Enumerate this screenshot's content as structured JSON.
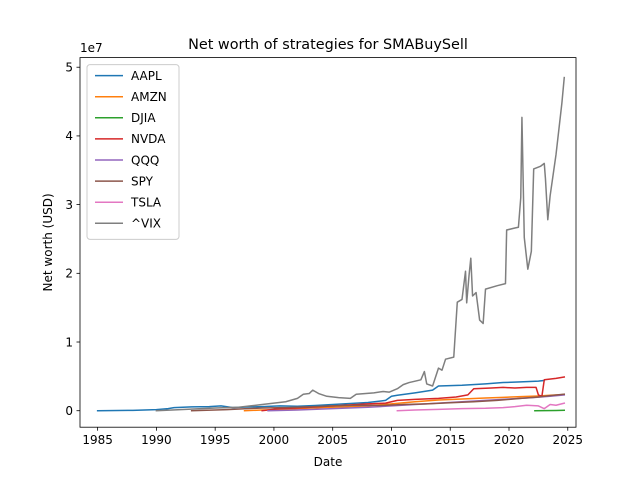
{
  "chart_data": {
    "type": "line",
    "title": "Net worth of strategies for SMABuySell",
    "xlabel": "Date",
    "ylabel": "Net worth (USD)",
    "y_offset_text": "1e7",
    "xlim": [
      1983.5,
      2025.7
    ],
    "ylim": [
      -2400000,
      51400000
    ],
    "x_ticks": [
      1985,
      1990,
      1995,
      2000,
      2005,
      2010,
      2015,
      2020,
      2025
    ],
    "x_tick_labels": [
      "1985",
      "1990",
      "1995",
      "2000",
      "2005",
      "2010",
      "2015",
      "2020",
      "2025"
    ],
    "y_ticks": [
      0,
      10000000,
      20000000,
      30000000,
      40000000,
      50000000
    ],
    "y_tick_labels": [
      "0",
      "1",
      "2",
      "3",
      "4",
      "5"
    ],
    "grid": false,
    "legend_position": "top-left",
    "series": [
      {
        "name": "AAPL",
        "color": "#1f77b4",
        "points": [
          [
            1985.0,
            0
          ],
          [
            1988.0,
            50000
          ],
          [
            1990.0,
            150000
          ],
          [
            1991.0,
            300000
          ],
          [
            1991.5,
            450000
          ],
          [
            1993.0,
            550000
          ],
          [
            1994.5,
            600000
          ],
          [
            1995.5,
            700000
          ],
          [
            1996.5,
            450000
          ],
          [
            1998.0,
            550000
          ],
          [
            1999.0,
            600000
          ],
          [
            2000.5,
            700000
          ],
          [
            2002.0,
            650000
          ],
          [
            2003.5,
            750000
          ],
          [
            2005.0,
            900000
          ],
          [
            2006.5,
            1050000
          ],
          [
            2008.0,
            1200000
          ],
          [
            2009.5,
            1500000
          ],
          [
            2010.0,
            2100000
          ],
          [
            2010.5,
            2250000
          ],
          [
            2012.0,
            2600000
          ],
          [
            2013.5,
            3000000
          ],
          [
            2014.0,
            3600000
          ],
          [
            2016.0,
            3700000
          ],
          [
            2018.0,
            3900000
          ],
          [
            2019.5,
            4100000
          ],
          [
            2021.0,
            4200000
          ],
          [
            2022.5,
            4300000
          ],
          [
            2023.0,
            4400000
          ]
        ]
      },
      {
        "name": "AMZN",
        "color": "#ff7f0e",
        "points": [
          [
            1997.5,
            0
          ],
          [
            1999.0,
            100000
          ],
          [
            2000.5,
            150000
          ],
          [
            2002.0,
            300000
          ],
          [
            2004.0,
            450000
          ],
          [
            2006.0,
            550000
          ],
          [
            2008.0,
            700000
          ],
          [
            2010.0,
            1000000
          ],
          [
            2012.0,
            1300000
          ],
          [
            2014.0,
            1550000
          ],
          [
            2016.0,
            1700000
          ],
          [
            2018.0,
            1850000
          ],
          [
            2019.5,
            1950000
          ],
          [
            2021.0,
            2050000
          ],
          [
            2022.5,
            2150000
          ],
          [
            2023.5,
            2250000
          ],
          [
            2024.7,
            2350000
          ]
        ]
      },
      {
        "name": "DJIA",
        "color": "#2ca02c",
        "points": [
          [
            2022.2,
            0
          ],
          [
            2023.0,
            20000
          ],
          [
            2024.0,
            40000
          ],
          [
            2024.7,
            60000
          ]
        ]
      },
      {
        "name": "NVDA",
        "color": "#d62728",
        "points": [
          [
            1999.0,
            0
          ],
          [
            2000.5,
            300000
          ],
          [
            2002.0,
            400000
          ],
          [
            2004.0,
            600000
          ],
          [
            2006.0,
            800000
          ],
          [
            2008.0,
            1000000
          ],
          [
            2009.5,
            1100000
          ],
          [
            2010.5,
            1500000
          ],
          [
            2012.0,
            1650000
          ],
          [
            2014.0,
            1800000
          ],
          [
            2015.5,
            2000000
          ],
          [
            2016.5,
            2300000
          ],
          [
            2017.0,
            3200000
          ],
          [
            2018.5,
            3300000
          ],
          [
            2019.5,
            3400000
          ],
          [
            2020.5,
            3300000
          ],
          [
            2021.5,
            3400000
          ],
          [
            2022.3,
            3400000
          ],
          [
            2022.5,
            2300000
          ],
          [
            2022.8,
            2100000
          ],
          [
            2023.0,
            4500000
          ],
          [
            2024.0,
            4700000
          ],
          [
            2024.7,
            4900000
          ]
        ]
      },
      {
        "name": "QQQ",
        "color": "#9467bd",
        "points": [
          [
            1999.5,
            0
          ],
          [
            2002.0,
            100000
          ],
          [
            2005.0,
            300000
          ],
          [
            2008.0,
            500000
          ],
          [
            2010.0,
            700000
          ],
          [
            2012.0,
            900000
          ],
          [
            2014.0,
            1100000
          ],
          [
            2016.0,
            1300000
          ],
          [
            2018.0,
            1500000
          ],
          [
            2020.0,
            1700000
          ],
          [
            2022.0,
            1900000
          ],
          [
            2023.5,
            2100000
          ],
          [
            2024.7,
            2300000
          ]
        ]
      },
      {
        "name": "SPY",
        "color": "#8c564b",
        "points": [
          [
            1993.0,
            0
          ],
          [
            1996.0,
            150000
          ],
          [
            1999.0,
            400000
          ],
          [
            2001.0,
            450000
          ],
          [
            2003.0,
            550000
          ],
          [
            2005.0,
            700000
          ],
          [
            2007.0,
            800000
          ],
          [
            2009.0,
            750000
          ],
          [
            2011.0,
            900000
          ],
          [
            2013.0,
            1000000
          ],
          [
            2015.0,
            1150000
          ],
          [
            2017.0,
            1300000
          ],
          [
            2019.0,
            1500000
          ],
          [
            2021.0,
            1800000
          ],
          [
            2022.5,
            2000000
          ],
          [
            2023.5,
            2200000
          ],
          [
            2024.7,
            2400000
          ]
        ]
      },
      {
        "name": "TSLA",
        "color": "#e377c2",
        "points": [
          [
            2010.5,
            0
          ],
          [
            2012.0,
            100000
          ],
          [
            2014.0,
            200000
          ],
          [
            2016.0,
            300000
          ],
          [
            2018.0,
            350000
          ],
          [
            2019.5,
            450000
          ],
          [
            2020.5,
            600000
          ],
          [
            2021.5,
            800000
          ],
          [
            2022.5,
            700000
          ],
          [
            2023.0,
            300000
          ],
          [
            2023.5,
            900000
          ],
          [
            2024.0,
            800000
          ],
          [
            2024.7,
            1100000
          ]
        ]
      },
      {
        "name": "^VIX",
        "color": "#7f7f7f",
        "points": [
          [
            1990.0,
            0
          ],
          [
            1992.5,
            200000
          ],
          [
            1995.0,
            400000
          ],
          [
            1997.0,
            500000
          ],
          [
            1998.0,
            700000
          ],
          [
            1999.0,
            900000
          ],
          [
            2000.0,
            1100000
          ],
          [
            2001.0,
            1300000
          ],
          [
            2002.0,
            1800000
          ],
          [
            2002.5,
            2400000
          ],
          [
            2003.0,
            2500000
          ],
          [
            2003.3,
            3000000
          ],
          [
            2003.8,
            2500000
          ],
          [
            2004.5,
            2100000
          ],
          [
            2005.5,
            1900000
          ],
          [
            2006.5,
            1800000
          ],
          [
            2007.0,
            2400000
          ],
          [
            2008.5,
            2600000
          ],
          [
            2009.3,
            2800000
          ],
          [
            2009.8,
            2700000
          ],
          [
            2010.5,
            3200000
          ],
          [
            2011.0,
            3800000
          ],
          [
            2011.5,
            4100000
          ],
          [
            2012.5,
            4500000
          ],
          [
            2012.8,
            5700000
          ],
          [
            2013.0,
            3900000
          ],
          [
            2013.5,
            3600000
          ],
          [
            2014.0,
            6200000
          ],
          [
            2014.3,
            5900000
          ],
          [
            2014.6,
            7500000
          ],
          [
            2015.3,
            7800000
          ],
          [
            2015.6,
            15800000
          ],
          [
            2016.0,
            16200000
          ],
          [
            2016.3,
            20300000
          ],
          [
            2016.4,
            15700000
          ],
          [
            2016.6,
            19700000
          ],
          [
            2016.75,
            22200000
          ],
          [
            2016.9,
            16700000
          ],
          [
            2017.2,
            17200000
          ],
          [
            2017.5,
            13200000
          ],
          [
            2017.8,
            12700000
          ],
          [
            2018.0,
            17700000
          ],
          [
            2019.0,
            18200000
          ],
          [
            2019.7,
            18500000
          ],
          [
            2019.8,
            26300000
          ],
          [
            2020.5,
            26600000
          ],
          [
            2020.8,
            26700000
          ],
          [
            2021.0,
            31000000
          ],
          [
            2021.1,
            42700000
          ],
          [
            2021.3,
            25200000
          ],
          [
            2021.6,
            20600000
          ],
          [
            2021.9,
            23200000
          ],
          [
            2022.1,
            35200000
          ],
          [
            2022.7,
            35600000
          ],
          [
            2023.0,
            36000000
          ],
          [
            2023.1,
            33800000
          ],
          [
            2023.3,
            27800000
          ],
          [
            2023.5,
            31300000
          ],
          [
            2024.0,
            37300000
          ],
          [
            2024.5,
            44800000
          ],
          [
            2024.7,
            48500000
          ]
        ]
      }
    ]
  }
}
